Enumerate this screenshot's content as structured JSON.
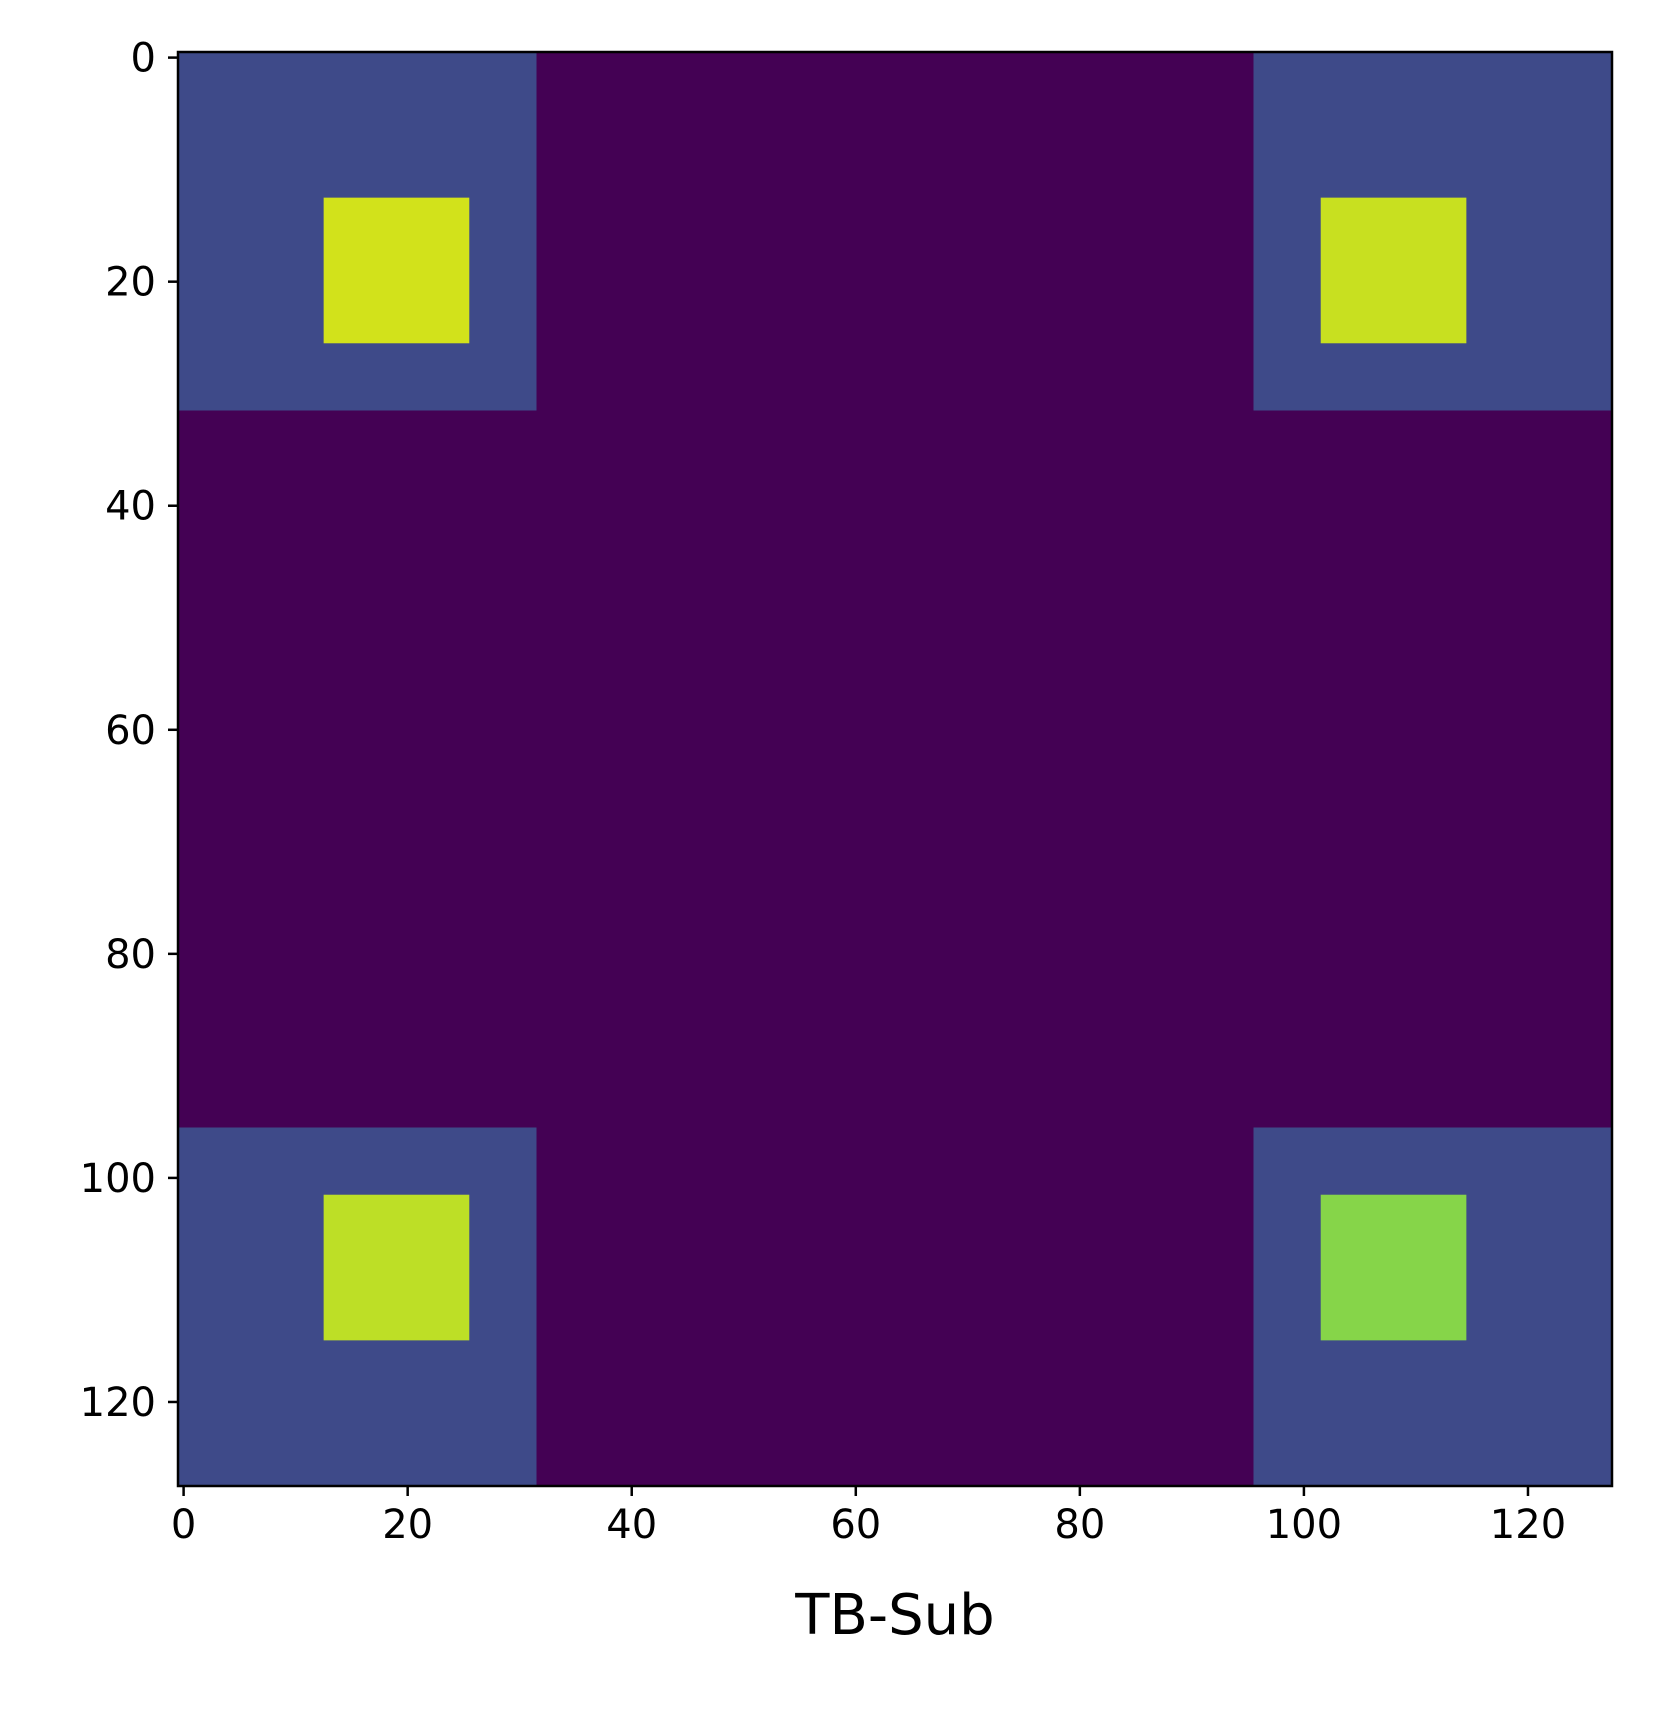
{
  "chart_data": {
    "type": "heatmap",
    "title": "",
    "xlabel": "TB-Sub",
    "ylabel": "",
    "colormap": "viridis",
    "grid": false,
    "y_axis_inverted": true,
    "xlim": [
      -0.5,
      127.5
    ],
    "ylim": [
      127.5,
      -0.5
    ],
    "xticks": [
      0,
      20,
      40,
      60,
      80,
      100,
      120
    ],
    "yticks": [
      0,
      20,
      40,
      60,
      80,
      100,
      120
    ],
    "regions": [
      {
        "name": "background",
        "x": [
          0,
          127
        ],
        "y": [
          0,
          127
        ],
        "color": "#440154"
      },
      {
        "name": "outer-top-left",
        "x": [
          0,
          31
        ],
        "y": [
          0,
          31
        ],
        "color": "#3e4a89"
      },
      {
        "name": "outer-top-right",
        "x": [
          96,
          127
        ],
        "y": [
          0,
          31
        ],
        "color": "#3e4a89"
      },
      {
        "name": "outer-bottom-left",
        "x": [
          0,
          31
        ],
        "y": [
          96,
          127
        ],
        "color": "#3e4a89"
      },
      {
        "name": "outer-bottom-right",
        "x": [
          96,
          127
        ],
        "y": [
          96,
          127
        ],
        "color": "#3e4a89"
      },
      {
        "name": "inner-top-left",
        "x": [
          13,
          25
        ],
        "y": [
          13,
          25
        ],
        "color": "#d2e21b"
      },
      {
        "name": "inner-top-right",
        "x": [
          102,
          114
        ],
        "y": [
          13,
          25
        ],
        "color": "#c8e020"
      },
      {
        "name": "inner-bottom-left",
        "x": [
          13,
          25
        ],
        "y": [
          102,
          114
        ],
        "color": "#bddf26"
      },
      {
        "name": "inner-bottom-right",
        "x": [
          102,
          114
        ],
        "y": [
          102,
          114
        ],
        "color": "#86d549"
      }
    ]
  }
}
